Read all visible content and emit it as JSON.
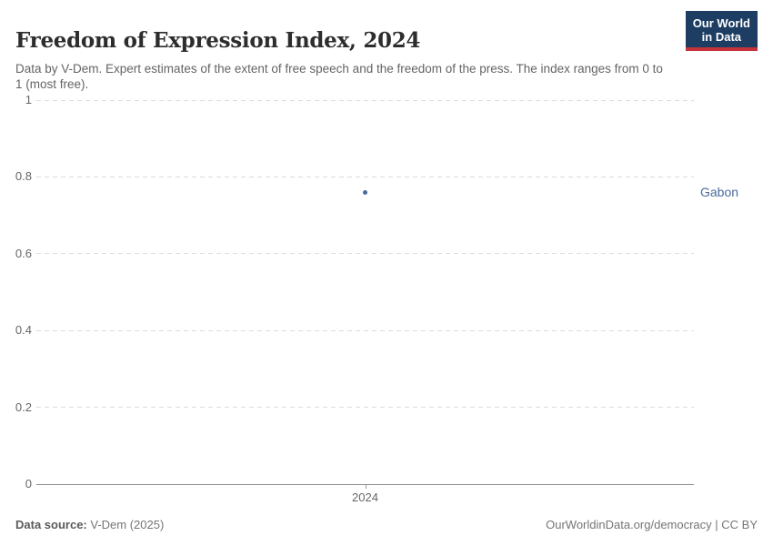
{
  "header": {
    "title": "Freedom of Expression Index, 2024",
    "subtitle": "Data by V-Dem. Expert estimates of the extent of free speech and the freedom of the press. The index ranges from 0 to 1 (most free).",
    "logo": {
      "line1": "Our World",
      "line2": "in Data",
      "bg_color": "#1d3d63",
      "accent_color": "#c5333b"
    }
  },
  "chart_data": {
    "type": "scatter",
    "title": "Freedom of Expression Index, 2024",
    "x": [
      2024
    ],
    "xticks": [
      "2024"
    ],
    "series": [
      {
        "name": "Gabon",
        "values": [
          0.76
        ],
        "color": "#4c6a9c"
      }
    ],
    "xlabel": "",
    "ylabel": "",
    "ylim": [
      0,
      1
    ],
    "yticks": [
      0,
      0.2,
      0.4,
      0.6,
      0.8,
      1
    ],
    "grid": true,
    "legend_position": "right-of-point"
  },
  "footer": {
    "source_label": "Data source:",
    "source_value": "V-Dem (2025)",
    "right_text": "OurWorldinData.org/democracy | CC BY"
  }
}
